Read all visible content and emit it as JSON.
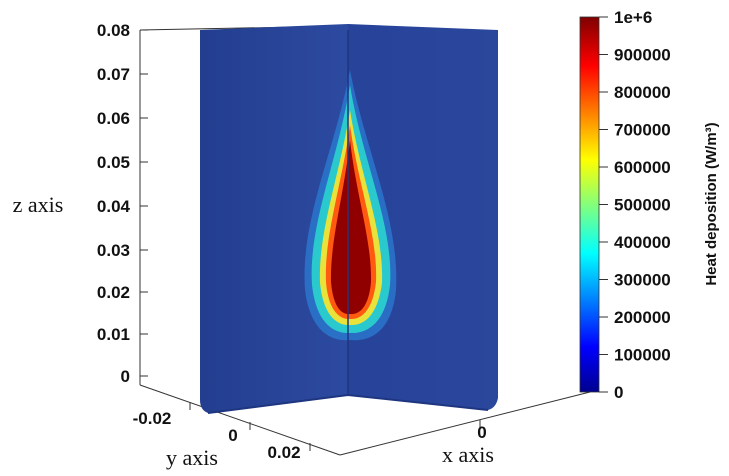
{
  "axes": {
    "z_title": "z axis",
    "y_title": "y axis",
    "x_title": "x axis",
    "z_ticks": [
      "0.08",
      "0.07",
      "0.06",
      "0.05",
      "0.04",
      "0.03",
      "0.02",
      "0.01",
      "0"
    ],
    "y_ticks": [
      "-0.02",
      "0",
      "0.02"
    ],
    "x_ticks": [
      "0"
    ]
  },
  "colorbar": {
    "title": "Heat deposition (W/m³)",
    "ticks": [
      "1e+6",
      "900000",
      "800000",
      "700000",
      "600000",
      "500000",
      "400000",
      "300000",
      "200000",
      "100000",
      "0"
    ],
    "range": [
      0,
      1000000
    ],
    "colormap": "jet",
    "colors": [
      "#00008f",
      "#0000ff",
      "#00ffff",
      "#ffff00",
      "#ff0000",
      "#800000"
    ]
  },
  "scene": {
    "background_color": "#2c4a9e",
    "plume_core_color": "#8b0000"
  }
}
